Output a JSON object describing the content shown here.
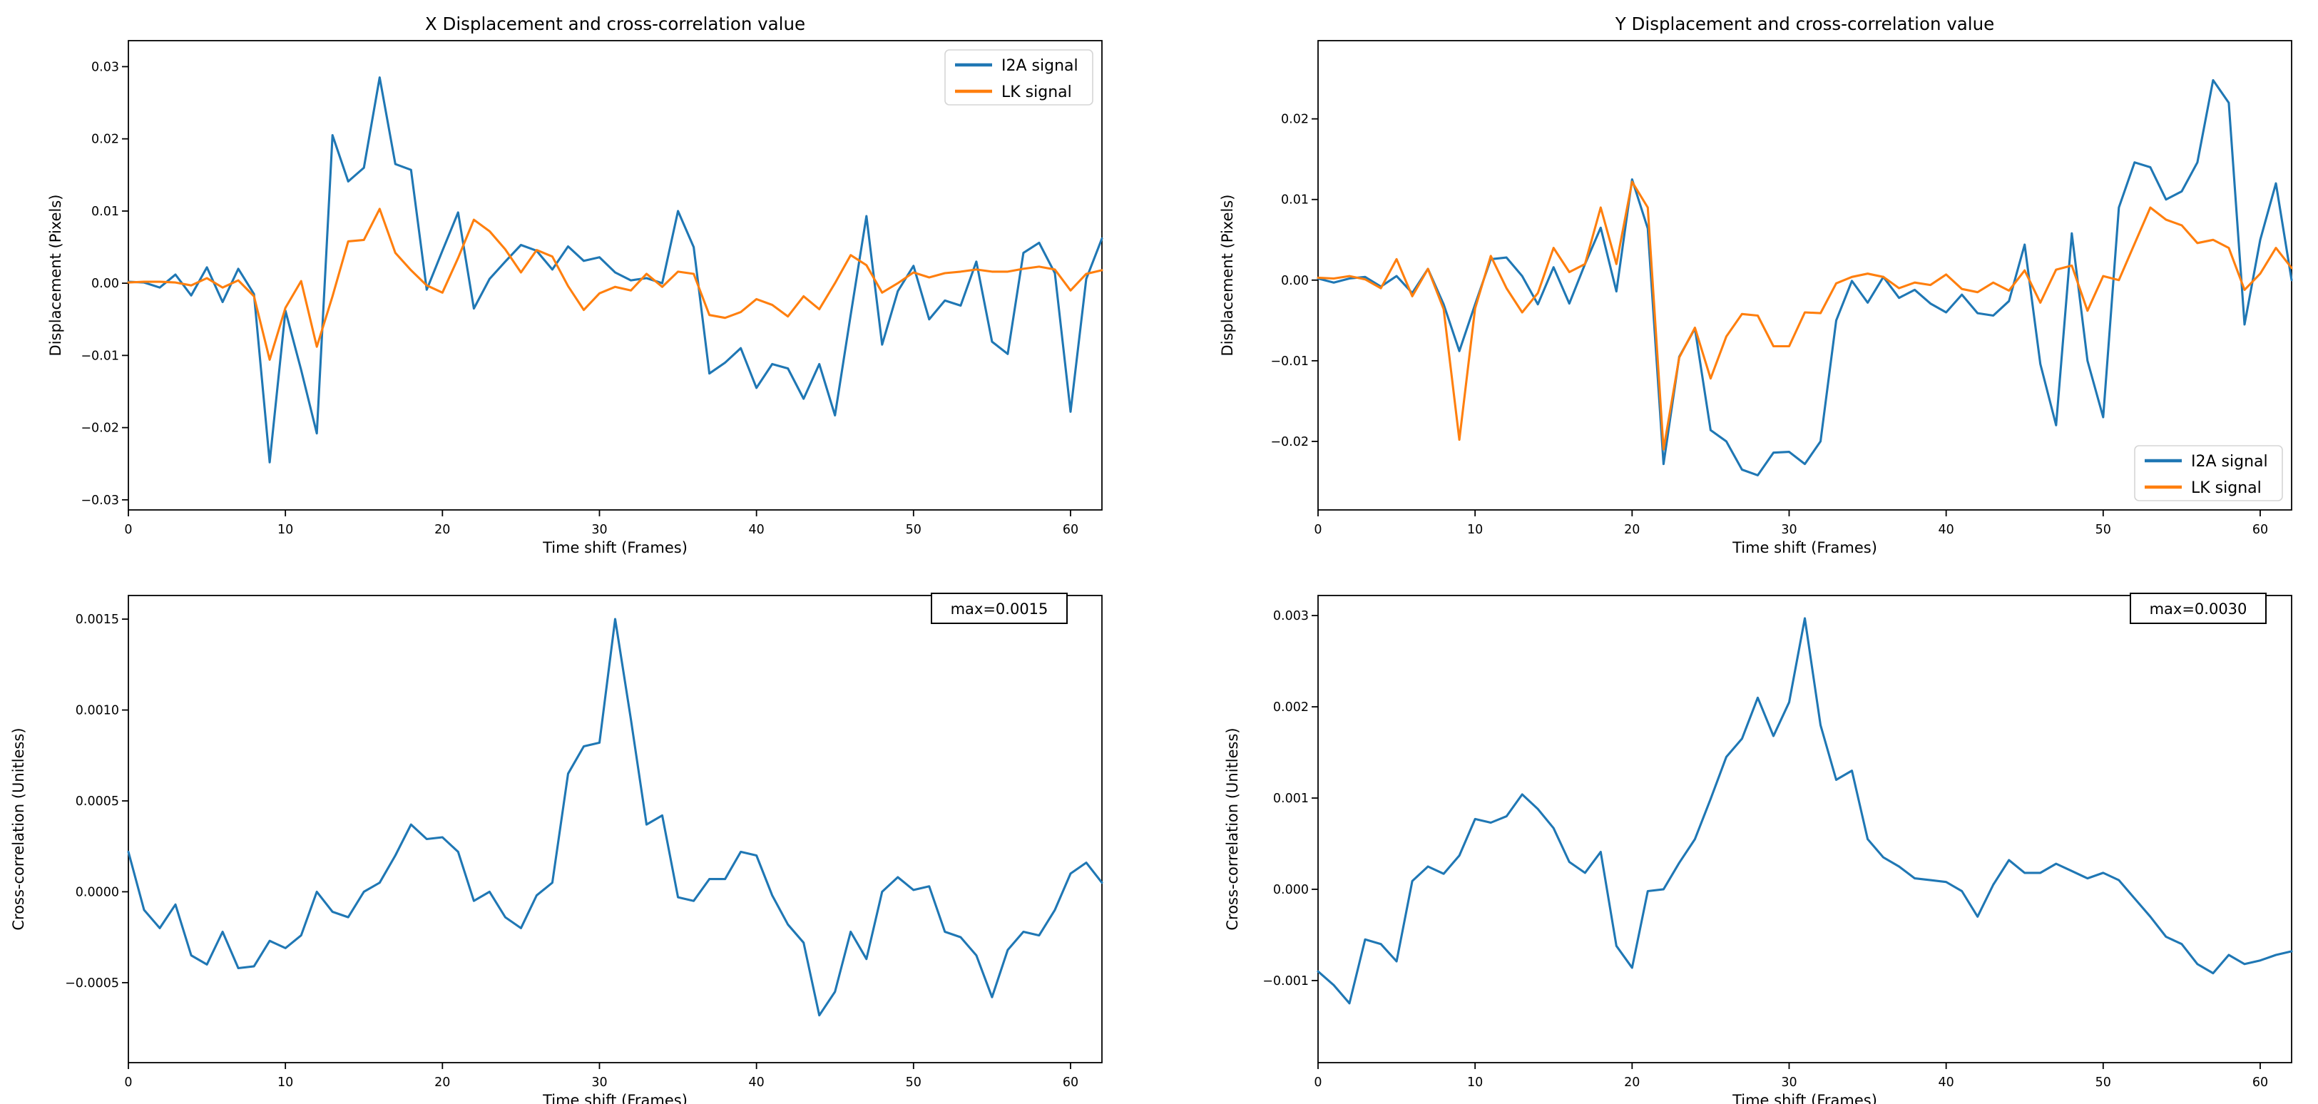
{
  "figure": {
    "background": "#ffffff",
    "series_colors": {
      "i2a": "#1f77b4",
      "lk": "#ff7f0e"
    },
    "spine_color": "#000000",
    "legend_border_color": "#d5d5d5"
  },
  "chart_data": [
    {
      "name": "x-displacement",
      "type": "line",
      "title": "X Displacement and cross-correlation value",
      "xlabel": "Time shift (Frames)",
      "ylabel": "Displacement (Pixels)",
      "xlim": [
        0,
        62
      ],
      "ylim": [
        -0.0314,
        0.0336
      ],
      "xticks": [
        0,
        10,
        20,
        30,
        40,
        50,
        60
      ],
      "xtick_labels": [
        "0",
        "10",
        "20",
        "30",
        "40",
        "50",
        "60"
      ],
      "yticks": [
        0.03,
        0.02,
        0.01,
        0.0,
        -0.01,
        -0.02,
        -0.03
      ],
      "ytick_labels": [
        "0.03",
        "0.02",
        "0.01",
        "0.00",
        "−0.01",
        "−0.02",
        "−0.03"
      ],
      "grid": false,
      "legend": {
        "location": "upper right",
        "entries": [
          "I2A signal",
          "LK signal"
        ]
      },
      "x_start": 0,
      "x_step": 1,
      "series": [
        {
          "name": "I2A signal",
          "color": "#1f77b4",
          "values": [
            0.0002,
            0.0001,
            -0.0006,
            0.0012,
            -0.0017,
            0.0022,
            -0.0026,
            0.002,
            -0.0015,
            -0.0248,
            -0.0038,
            -0.012,
            -0.0208,
            0.0205,
            0.0141,
            0.016,
            0.0285,
            0.0165,
            0.0157,
            -0.0009,
            0.0045,
            0.0098,
            -0.0035,
            0.0006,
            0.003,
            0.0053,
            0.0045,
            0.0019,
            0.0051,
            0.0031,
            0.0036,
            0.0015,
            0.0004,
            0.0007,
            0.0,
            0.01,
            0.005,
            -0.0125,
            -0.011,
            -0.009,
            -0.0145,
            -0.0112,
            -0.0118,
            -0.016,
            -0.0112,
            -0.0183,
            -0.0044,
            0.0093,
            -0.0085,
            -0.0011,
            0.0024,
            -0.005,
            -0.0024,
            -0.0031,
            0.003,
            -0.0081,
            -0.0098,
            0.0042,
            0.0056,
            0.0014,
            -0.0178,
            0.0006,
            0.0062
          ]
        },
        {
          "name": "LK signal",
          "color": "#ff7f0e",
          "values": [
            0.0001,
            0.0002,
            0.0002,
            0.0001,
            -0.0003,
            0.0007,
            -0.0006,
            0.0004,
            -0.0018,
            -0.0106,
            -0.0034,
            0.0003,
            -0.0088,
            -0.0018,
            0.0058,
            0.006,
            0.0103,
            0.0042,
            0.0018,
            -0.0003,
            -0.0013,
            0.0035,
            0.0088,
            0.0072,
            0.0047,
            0.0015,
            0.0046,
            0.0037,
            -0.0004,
            -0.0037,
            -0.0014,
            -0.0005,
            -0.001,
            0.0013,
            -0.0005,
            0.0016,
            0.0013,
            -0.0044,
            -0.0048,
            -0.004,
            -0.0022,
            -0.003,
            -0.0046,
            -0.0018,
            -0.0036,
            0.0,
            0.0039,
            0.0025,
            -0.0013,
            0.0,
            0.0015,
            0.0008,
            0.0014,
            0.0016,
            0.0019,
            0.0016,
            0.0016,
            0.002,
            0.0023,
            0.0019,
            -0.001,
            0.0013,
            0.0018
          ]
        }
      ]
    },
    {
      "name": "y-displacement",
      "type": "line",
      "title": "Y Displacement and cross-correlation value",
      "xlabel": "Time shift (Frames)",
      "ylabel": "Displacement (Pixels)",
      "xlim": [
        0,
        62
      ],
      "ylim": [
        -0.0285,
        0.0297
      ],
      "xticks": [
        0,
        10,
        20,
        30,
        40,
        50,
        60
      ],
      "xtick_labels": [
        "0",
        "10",
        "20",
        "30",
        "40",
        "50",
        "60"
      ],
      "yticks": [
        0.02,
        0.01,
        0.0,
        -0.01,
        -0.02
      ],
      "ytick_labels": [
        "0.02",
        "0.01",
        "0.00",
        "−0.01",
        "−0.02"
      ],
      "grid": false,
      "legend": {
        "location": "lower right",
        "entries": [
          "I2A signal",
          "LK signal"
        ]
      },
      "x_start": 0,
      "x_step": 1,
      "series": [
        {
          "name": "I2A signal",
          "color": "#1f77b4",
          "values": [
            0.0002,
            -0.0003,
            0.0002,
            0.0004,
            -0.0008,
            0.0005,
            -0.0016,
            0.0014,
            -0.003,
            -0.0088,
            -0.003,
            0.0026,
            0.0028,
            0.0005,
            -0.003,
            0.0016,
            -0.0029,
            0.002,
            0.0065,
            -0.0014,
            0.0125,
            0.0064,
            -0.0228,
            -0.0095,
            -0.006,
            -0.0186,
            -0.02,
            -0.0235,
            -0.0242,
            -0.0214,
            -0.0213,
            -0.0228,
            -0.02,
            -0.005,
            -0.0001,
            -0.0028,
            0.0004,
            -0.0022,
            -0.0012,
            -0.0029,
            -0.004,
            -0.0018,
            -0.0041,
            -0.0044,
            -0.0026,
            0.0044,
            -0.0104,
            -0.018,
            0.0058,
            -0.01,
            -0.017,
            0.009,
            0.0146,
            0.014,
            0.01,
            0.011,
            0.0146,
            0.0248,
            0.022,
            -0.0055,
            0.005,
            0.012,
            0.0
          ]
        },
        {
          "name": "LK signal",
          "color": "#ff7f0e",
          "values": [
            0.0003,
            0.0002,
            0.0005,
            0.0001,
            -0.001,
            0.0026,
            -0.002,
            0.0014,
            -0.0036,
            -0.0198,
            -0.0035,
            0.003,
            -0.001,
            -0.004,
            -0.0016,
            0.004,
            0.001,
            0.002,
            0.009,
            0.002,
            0.0122,
            0.009,
            -0.021,
            -0.0096,
            -0.0059,
            -0.0122,
            -0.007,
            -0.0042,
            -0.0044,
            -0.0082,
            -0.0082,
            -0.004,
            -0.0041,
            -0.0004,
            0.0004,
            0.0008,
            0.0004,
            -0.001,
            -0.0003,
            -0.0006,
            0.0007,
            -0.0011,
            -0.0015,
            -0.0003,
            -0.0013,
            0.0012,
            -0.0028,
            0.0013,
            0.0018,
            -0.0038,
            0.0005,
            0.0,
            0.0045,
            0.009,
            0.0075,
            0.0068,
            0.0046,
            0.005,
            0.004,
            -0.0012,
            0.0008,
            0.004,
            0.0015
          ]
        }
      ]
    },
    {
      "name": "x-cross-correlation",
      "type": "line",
      "title": "",
      "xlabel": "Time shift (Frames)",
      "ylabel": "Cross-correlation (Unitless)",
      "xlim": [
        0,
        62
      ],
      "ylim": [
        -0.00094,
        0.00163
      ],
      "xticks": [
        0,
        10,
        20,
        30,
        40,
        50,
        60
      ],
      "xtick_labels": [
        "0",
        "10",
        "20",
        "30",
        "40",
        "50",
        "60"
      ],
      "yticks": [
        0.0015,
        0.001,
        0.0005,
        0.0,
        -0.0005
      ],
      "ytick_labels": [
        "0.0015",
        "0.0010",
        "0.0005",
        "0.0000",
        "−0.0005"
      ],
      "grid": false,
      "annotation": "max=0.0015",
      "x_start": 0,
      "x_step": 1,
      "series": [
        {
          "name": "Cross-correlation",
          "color": "#1f77b4",
          "values": [
            0.00022,
            -0.0001,
            -0.0002,
            -7e-05,
            -0.00035,
            -0.0004,
            -0.00022,
            -0.00042,
            -0.00041,
            -0.00027,
            -0.00031,
            -0.00024,
            0.0,
            -0.00011,
            -0.00014,
            0.0,
            5e-05,
            0.0002,
            0.00037,
            0.00029,
            0.0003,
            0.00022,
            -5e-05,
            0.0,
            -0.00014,
            -0.0002,
            -2e-05,
            5e-05,
            0.00065,
            0.0008,
            0.00082,
            0.0015,
            0.00095,
            0.00037,
            0.00042,
            -3e-05,
            -5e-05,
            7e-05,
            7e-05,
            0.00022,
            0.0002,
            -2e-05,
            -0.00018,
            -0.00028,
            -0.00068,
            -0.00055,
            -0.00022,
            -0.00037,
            0.0,
            8e-05,
            1e-05,
            3e-05,
            -0.00022,
            -0.00025,
            -0.00035,
            -0.00058,
            -0.00032,
            -0.00022,
            -0.00024,
            -0.0001,
            0.0001,
            0.00016,
            5e-05
          ]
        }
      ]
    },
    {
      "name": "y-cross-correlation",
      "type": "line",
      "title": "",
      "xlabel": "Time shift (Frames)",
      "ylabel": "Cross-correlation (Unitless)",
      "xlim": [
        0,
        62
      ],
      "ylim": [
        -0.0019,
        0.00322
      ],
      "xticks": [
        0,
        10,
        20,
        30,
        40,
        50,
        60
      ],
      "xtick_labels": [
        "0",
        "10",
        "20",
        "30",
        "40",
        "50",
        "60"
      ],
      "yticks": [
        0.003,
        0.002,
        0.001,
        0.0,
        -0.001
      ],
      "ytick_labels": [
        "0.003",
        "0.002",
        "0.001",
        "0.000",
        "−0.001"
      ],
      "grid": false,
      "annotation": "max=0.0030",
      "x_start": 0,
      "x_step": 1,
      "series": [
        {
          "name": "Cross-correlation",
          "color": "#1f77b4",
          "values": [
            -0.0009,
            -0.00105,
            -0.00125,
            -0.00055,
            -0.0006,
            -0.00079,
            9e-05,
            0.00025,
            0.00017,
            0.00037,
            0.00077,
            0.00073,
            0.0008,
            0.00104,
            0.00088,
            0.00067,
            0.0003,
            0.00018,
            0.00041,
            -0.00062,
            -0.00086,
            -2e-05,
            0.0,
            0.00029,
            0.00055,
            0.00099,
            0.00145,
            0.00165,
            0.0021,
            0.00168,
            0.00205,
            0.00297,
            0.0018,
            0.0012,
            0.0013,
            0.00055,
            0.00035,
            0.00025,
            0.00012,
            0.0001,
            8e-05,
            -2e-05,
            -0.0003,
            5e-05,
            0.00032,
            0.00018,
            0.00018,
            0.00028,
            0.0002,
            0.00012,
            0.00018,
            0.0001,
            -0.0001,
            -0.0003,
            -0.00052,
            -0.0006,
            -0.00082,
            -0.00092,
            -0.00072,
            -0.00082,
            -0.00078,
            -0.00072,
            -0.00068
          ]
        }
      ]
    }
  ]
}
